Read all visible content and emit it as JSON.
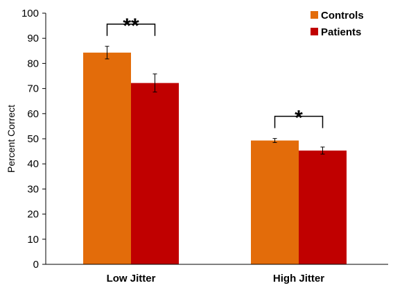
{
  "chart_data": {
    "type": "bar",
    "title": "",
    "xlabel": "",
    "ylabel": "Percent Correct",
    "ylim": [
      0,
      100
    ],
    "yticks": [
      0,
      10,
      20,
      30,
      40,
      50,
      60,
      70,
      80,
      90,
      100
    ],
    "categories": [
      "Low Jitter",
      "High Jitter"
    ],
    "series": [
      {
        "name": "Controls",
        "color": "#E36C0A",
        "values": [
          84.3,
          49.3
        ],
        "errors": [
          2.5,
          0.8
        ]
      },
      {
        "name": "Patients",
        "color": "#C00000",
        "values": [
          72.2,
          45.3
        ],
        "errors": [
          3.6,
          1.4
        ]
      }
    ],
    "significance": [
      {
        "category": "Low Jitter",
        "label": "**"
      },
      {
        "category": "High Jitter",
        "label": "*"
      }
    ],
    "grid": false,
    "legend_position": "top-right"
  }
}
